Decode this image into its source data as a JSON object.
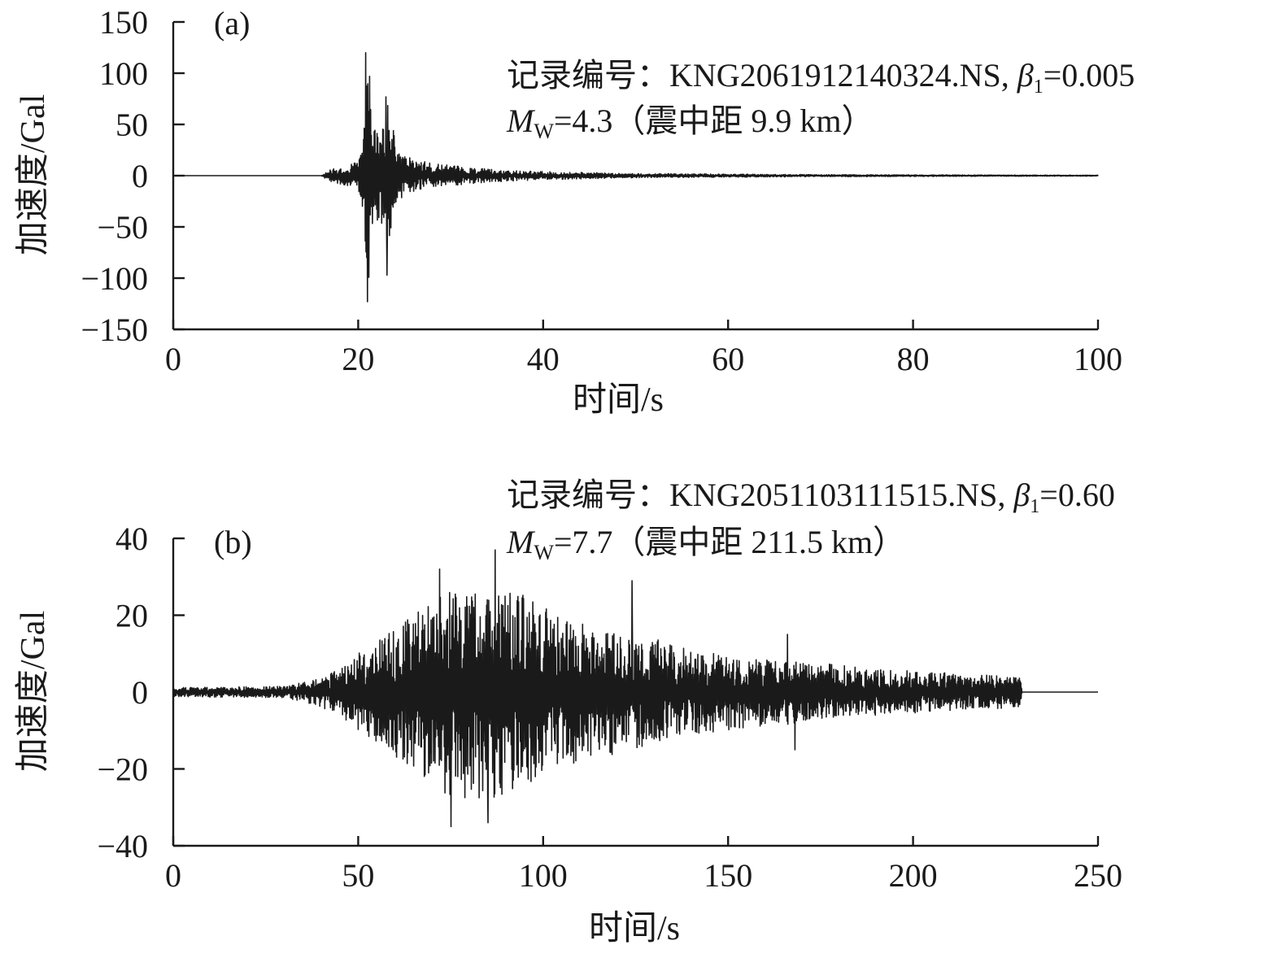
{
  "chart_data": [
    {
      "type": "line",
      "panel_label": "(a)",
      "xlabel": "时间/s",
      "ylabel": "加速度/Gal",
      "xlim": [
        0,
        100
      ],
      "ylim": [
        -150,
        150
      ],
      "xticks": [
        "0",
        "20",
        "40",
        "60",
        "80",
        "100"
      ],
      "yticks": [
        "150",
        "100",
        "50",
        "0",
        "−50",
        "−100",
        "−150"
      ],
      "annotation": {
        "line1_prefix": "记录编号：KNG2061912140324.NS, ",
        "line1_beta": "β",
        "line1_beta_sub": "1",
        "line1_beta_value": "=0.005",
        "line2_m": "M",
        "line2_m_sub": "W",
        "line2_rest": "=4.3（震中距 9.9 km）"
      },
      "series": [
        {
          "x": [
            0,
            16,
            17,
            18,
            19,
            20,
            20.5,
            20.8,
            21.0,
            21.2,
            21.4,
            21.6,
            21.8,
            22.0,
            22.3,
            22.6,
            22.9,
            23.1,
            23.3,
            23.6,
            23.9,
            24.2,
            24.6,
            25,
            25.5,
            26,
            27,
            28,
            30,
            32,
            35,
            40,
            50,
            60,
            70,
            80,
            90,
            100
          ],
          "envelope": [
            0,
            0,
            6,
            8,
            10,
            15,
            35,
            80,
            122,
            96,
            60,
            48,
            45,
            42,
            50,
            55,
            50,
            75,
            70,
            50,
            45,
            35,
            25,
            20,
            18,
            16,
            14,
            12,
            10,
            8,
            6,
            4,
            2,
            1.5,
            1,
            0.8,
            0.6,
            0.5
          ],
          "peaks": [
            {
              "t": 20.8,
              "v": 120
            },
            {
              "t": 20.9,
              "v": -80
            },
            {
              "t": 21.0,
              "v": -123
            },
            {
              "t": 21.2,
              "v": 97
            },
            {
              "t": 23.0,
              "v": 77
            },
            {
              "t": 23.1,
              "v": -97
            }
          ]
        }
      ]
    },
    {
      "type": "line",
      "panel_label": "(b)",
      "xlabel": "时间/s",
      "ylabel": "加速度/Gal",
      "xlim": [
        0,
        250
      ],
      "ylim": [
        -40,
        40
      ],
      "xticks": [
        "0",
        "50",
        "100",
        "150",
        "200",
        "250"
      ],
      "yticks": [
        "40",
        "20",
        "0",
        "−20",
        "−40"
      ],
      "annotation": {
        "line1_prefix": "记录编号：KNG2051103111515.NS, ",
        "line1_beta": "β",
        "line1_beta_sub": "1",
        "line1_beta_value": "=0.60",
        "line2_m": "M",
        "line2_m_sub": "W",
        "line2_rest": "=7.7（震中距 211.5 km）"
      },
      "series": [
        {
          "x": [
            0,
            30,
            35,
            40,
            45,
            50,
            55,
            60,
            65,
            70,
            75,
            80,
            85,
            90,
            95,
            100,
            105,
            110,
            115,
            120,
            125,
            130,
            135,
            140,
            150,
            160,
            170,
            180,
            190,
            200,
            210,
            220,
            229,
            229.5,
            250
          ],
          "envelope": [
            1.2,
            1.5,
            2.5,
            4,
            6,
            10,
            13,
            17,
            20,
            25,
            28,
            28,
            30,
            27,
            25,
            22,
            20,
            18,
            17,
            16,
            15,
            14,
            12,
            11,
            10,
            9,
            8,
            7,
            6,
            5.5,
            5,
            4.5,
            4,
            0,
            0
          ],
          "peaks": [
            {
              "t": 72,
              "v": 32
            },
            {
              "t": 75,
              "v": -35
            },
            {
              "t": 85,
              "v": -34
            },
            {
              "t": 87,
              "v": 37
            },
            {
              "t": 124,
              "v": 29
            },
            {
              "t": 166,
              "v": 15
            },
            {
              "t": 168,
              "v": -15
            }
          ]
        }
      ]
    }
  ]
}
